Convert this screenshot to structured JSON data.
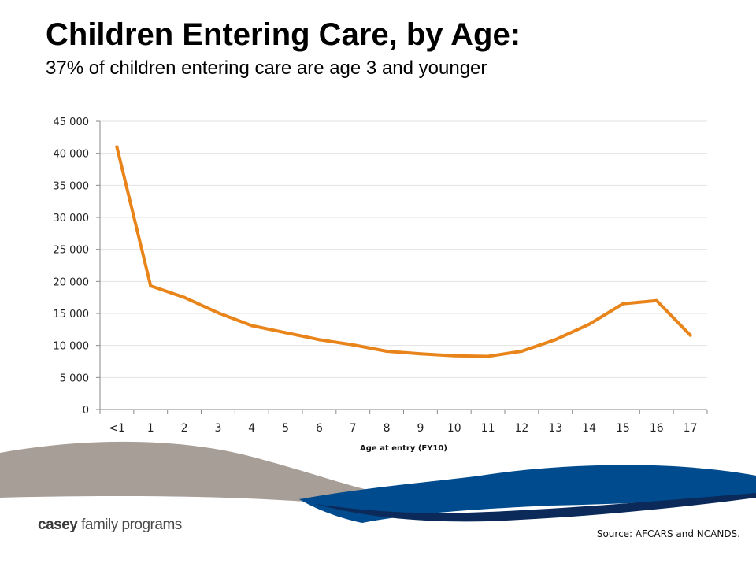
{
  "header": {
    "title": "Children Entering Care, by Age:",
    "subtitle": "37% of children entering care are age 3 and younger"
  },
  "footer": {
    "logo_bold": "casey",
    "logo_rest": " family programs",
    "source": "Source: AFCARS and NCANDS."
  },
  "colors": {
    "line": "#e8841a",
    "wave_gray": "#a79e98",
    "wave_blue": "#004b8d",
    "wave_navy": "#0b2a5a"
  },
  "chart_data": {
    "type": "line",
    "title": "",
    "xlabel": "Age at entry (FY10)",
    "ylabel": "",
    "ylim": [
      0,
      45000
    ],
    "yticks": [
      0,
      5000,
      10000,
      15000,
      20000,
      25000,
      30000,
      35000,
      40000,
      45000
    ],
    "ytick_labels": [
      "0",
      "5 000",
      "10 000",
      "15 000",
      "20 000",
      "25 000",
      "30 000",
      "35 000",
      "40 000",
      "45 000"
    ],
    "grid": true,
    "legend": "none",
    "categories": [
      "<1",
      "1",
      "2",
      "3",
      "4",
      "5",
      "6",
      "7",
      "8",
      "9",
      "10",
      "11",
      "12",
      "13",
      "14",
      "15",
      "16",
      "17"
    ],
    "series": [
      {
        "values": [
          41000,
          19300,
          17500,
          15100,
          13100,
          12000,
          10900,
          10100,
          9100,
          8700,
          8400,
          8300,
          9100,
          10900,
          13300,
          16500,
          17000,
          11600
        ]
      }
    ]
  }
}
